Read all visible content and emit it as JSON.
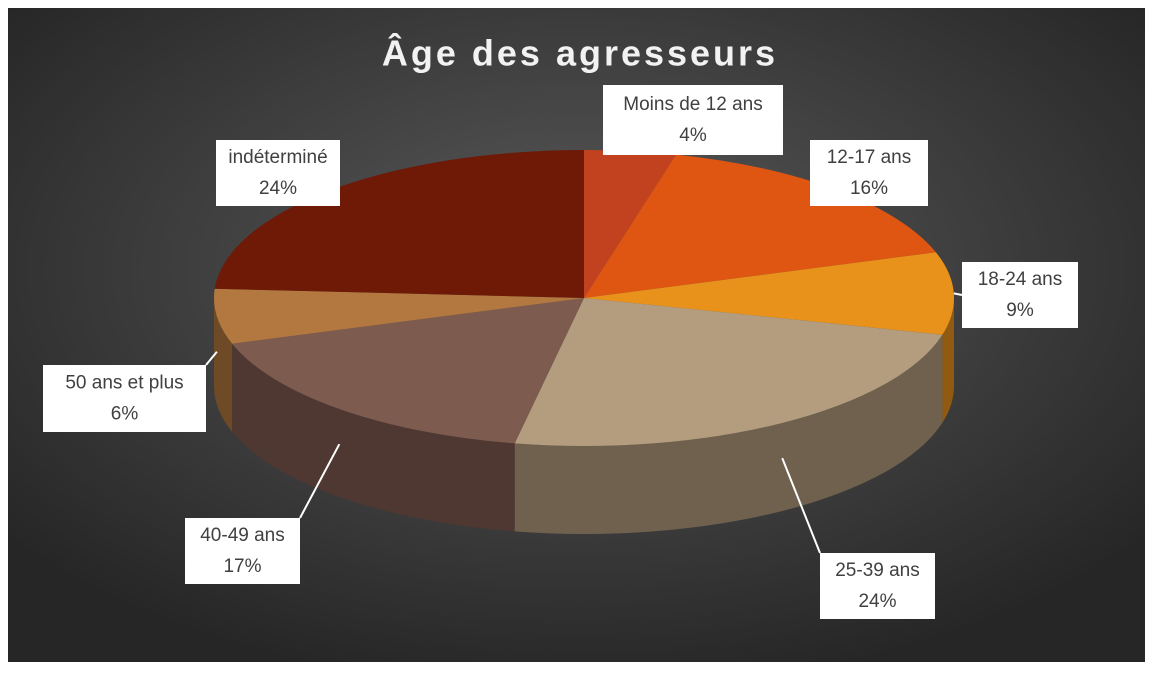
{
  "chart_data": {
    "type": "pie3d",
    "title": "Âge des agresseurs",
    "categories": [
      "Moins de 12 ans",
      "12-17 ans",
      "18-24 ans",
      "25-39 ans",
      "40-49 ans",
      "50 ans et plus",
      "indéterminé"
    ],
    "values": [
      4,
      16,
      9,
      24,
      17,
      6,
      24
    ],
    "value_labels": [
      "4%",
      "16%",
      "9%",
      "24%",
      "17%",
      "6%",
      "24%"
    ],
    "colors": [
      "#c2421f",
      "#df5512",
      "#e8921c",
      "#b39d7e",
      "#7d5b4f",
      "#b3783f",
      "#6e1a06"
    ]
  }
}
